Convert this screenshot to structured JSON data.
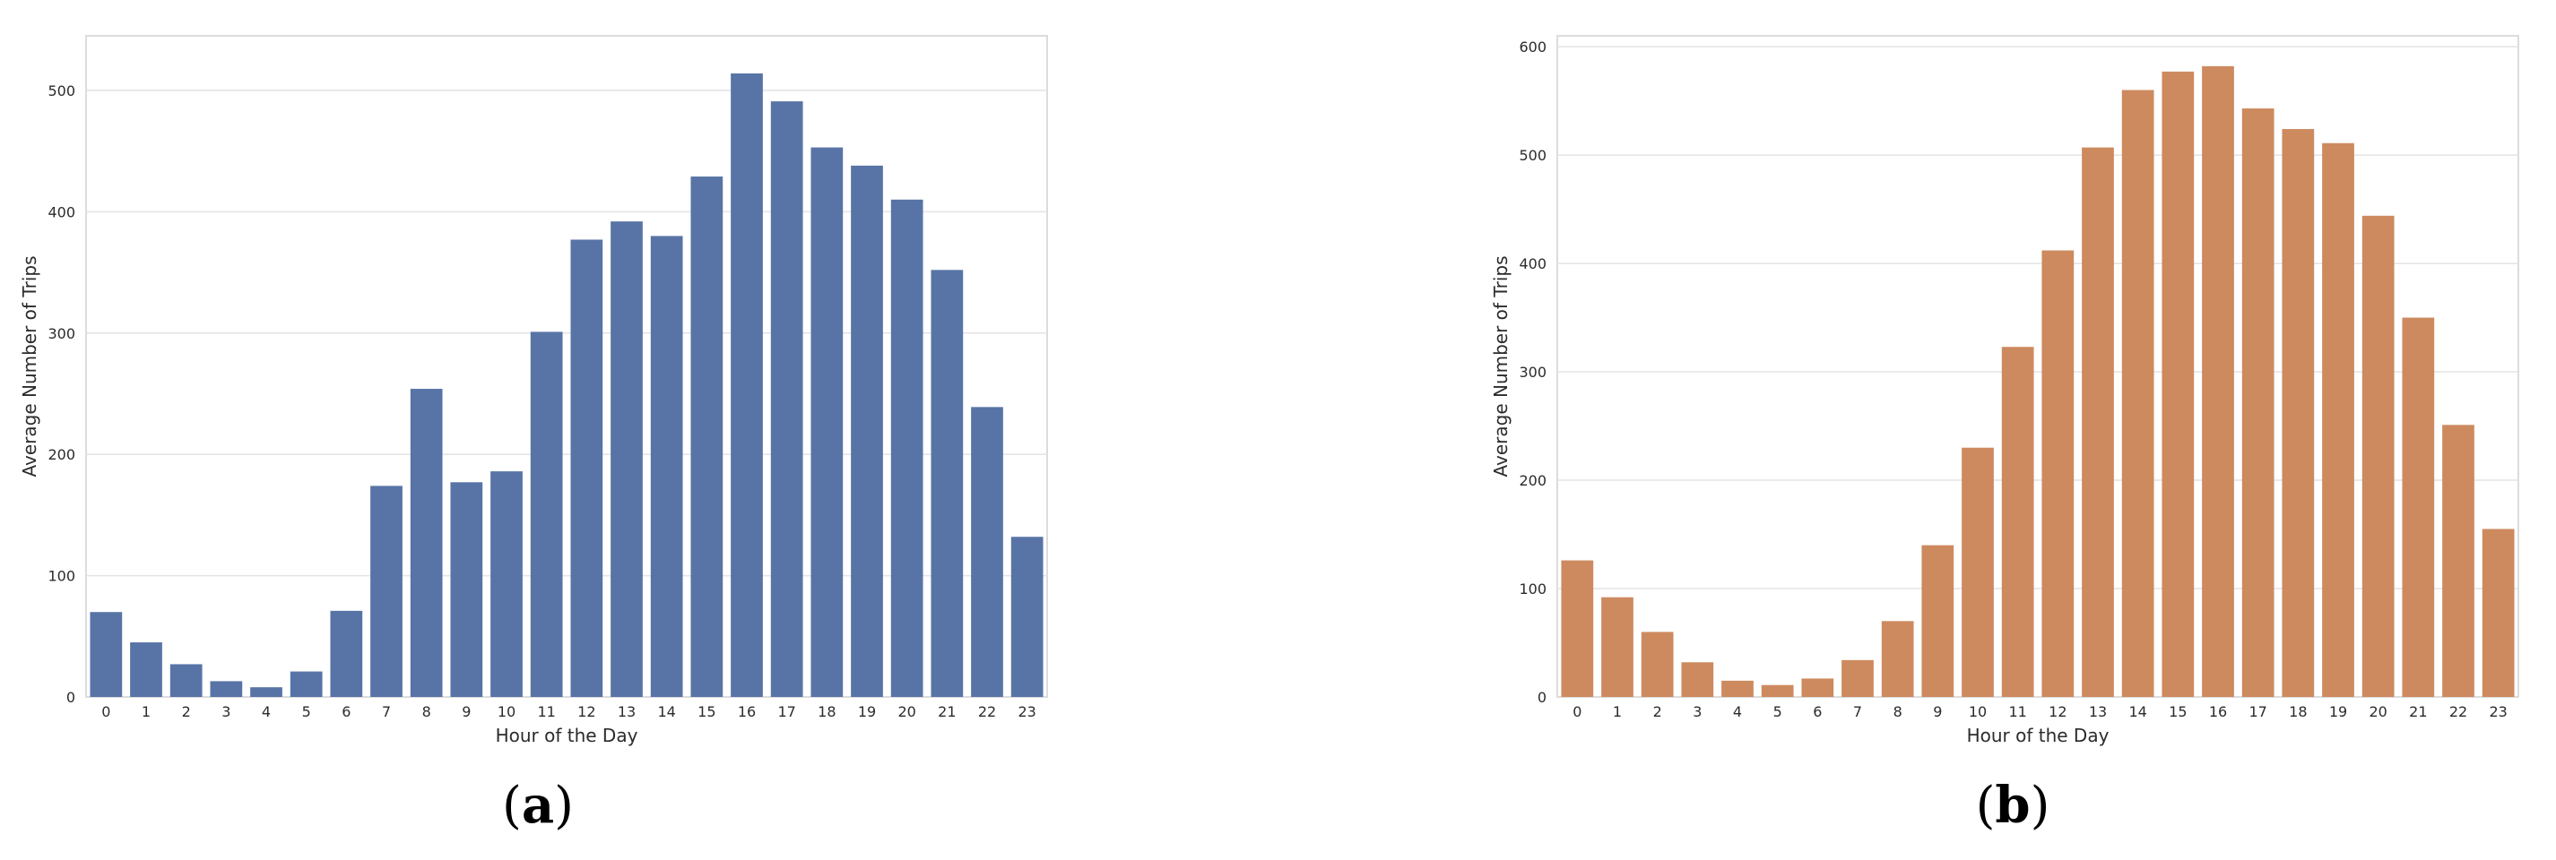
{
  "chart_data": [
    {
      "type": "bar",
      "panel_label": "a",
      "color": "#5874a6",
      "xlabel": "Hour of the Day",
      "ylabel": "Average Number of Trips",
      "categories": [
        "0",
        "1",
        "2",
        "3",
        "4",
        "5",
        "6",
        "7",
        "8",
        "9",
        "10",
        "11",
        "12",
        "13",
        "14",
        "15",
        "16",
        "17",
        "18",
        "19",
        "20",
        "21",
        "22",
        "23"
      ],
      "values": [
        70,
        45,
        27,
        13,
        8,
        21,
        71,
        174,
        254,
        177,
        186,
        301,
        377,
        392,
        380,
        429,
        514,
        491,
        453,
        438,
        410,
        352,
        239,
        132
      ],
      "yticks": [
        0,
        100,
        200,
        300,
        400,
        500
      ],
      "ylim": [
        0,
        545
      ],
      "grid": "horizontal"
    },
    {
      "type": "bar",
      "panel_label": "b",
      "color": "#cd8a5f",
      "xlabel": "Hour of the Day",
      "ylabel": "Average Number of Trips",
      "categories": [
        "0",
        "1",
        "2",
        "3",
        "4",
        "5",
        "6",
        "7",
        "8",
        "9",
        "10",
        "11",
        "12",
        "13",
        "14",
        "15",
        "16",
        "17",
        "18",
        "19",
        "20",
        "21",
        "22",
        "23"
      ],
      "values": [
        126,
        92,
        60,
        32,
        15,
        11,
        17,
        34,
        70,
        140,
        230,
        323,
        412,
        507,
        560,
        577,
        582,
        543,
        524,
        511,
        444,
        350,
        251,
        155
      ],
      "yticks": [
        0,
        100,
        200,
        300,
        400,
        500,
        600
      ],
      "ylim": [
        0,
        610
      ],
      "grid": "horizontal"
    }
  ]
}
